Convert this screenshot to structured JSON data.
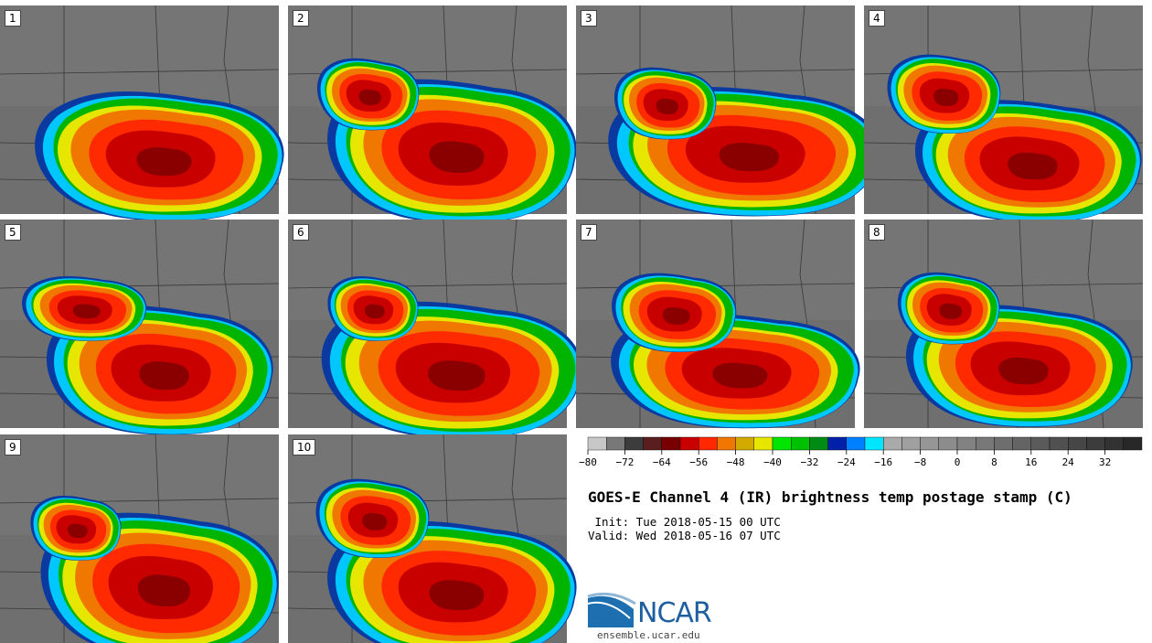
{
  "panels": [
    {
      "label": "1"
    },
    {
      "label": "2"
    },
    {
      "label": "3"
    },
    {
      "label": "4"
    },
    {
      "label": "5"
    },
    {
      "label": "6"
    },
    {
      "label": "7"
    },
    {
      "label": "8"
    },
    {
      "label": "9"
    },
    {
      "label": "10"
    }
  ],
  "colorbar": {
    "ticks": [
      "−80",
      "−72",
      "−64",
      "−56",
      "−48",
      "−40",
      "−32",
      "−24",
      "−16",
      "−8",
      "0",
      "8",
      "16",
      "24",
      "32"
    ],
    "colors": [
      "#c8c8c8",
      "#787878",
      "#3c3c3c",
      "#5a1e1e",
      "#780000",
      "#c80000",
      "#ff2800",
      "#f07800",
      "#d2aa00",
      "#e6e600",
      "#00e600",
      "#00c000",
      "#008c14",
      "#0020aa",
      "#0080ff",
      "#00e6ff",
      "#aaaaaa",
      "#a0a0a0",
      "#969696",
      "#8c8c8c",
      "#828282",
      "#787878",
      "#6e6e6e",
      "#646464",
      "#5a5a5a",
      "#505050",
      "#464646",
      "#3c3c3c",
      "#323232",
      "#282828"
    ]
  },
  "title": "GOES-E Channel 4 (IR) brightness temp postage stamp (C)",
  "init": " Init: Tue 2018-05-15 00 UTC",
  "valid": "Valid: Wed 2018-05-16 07 UTC",
  "logo": {
    "text": "NCAR",
    "url": "ensemble.ucar.edu"
  }
}
